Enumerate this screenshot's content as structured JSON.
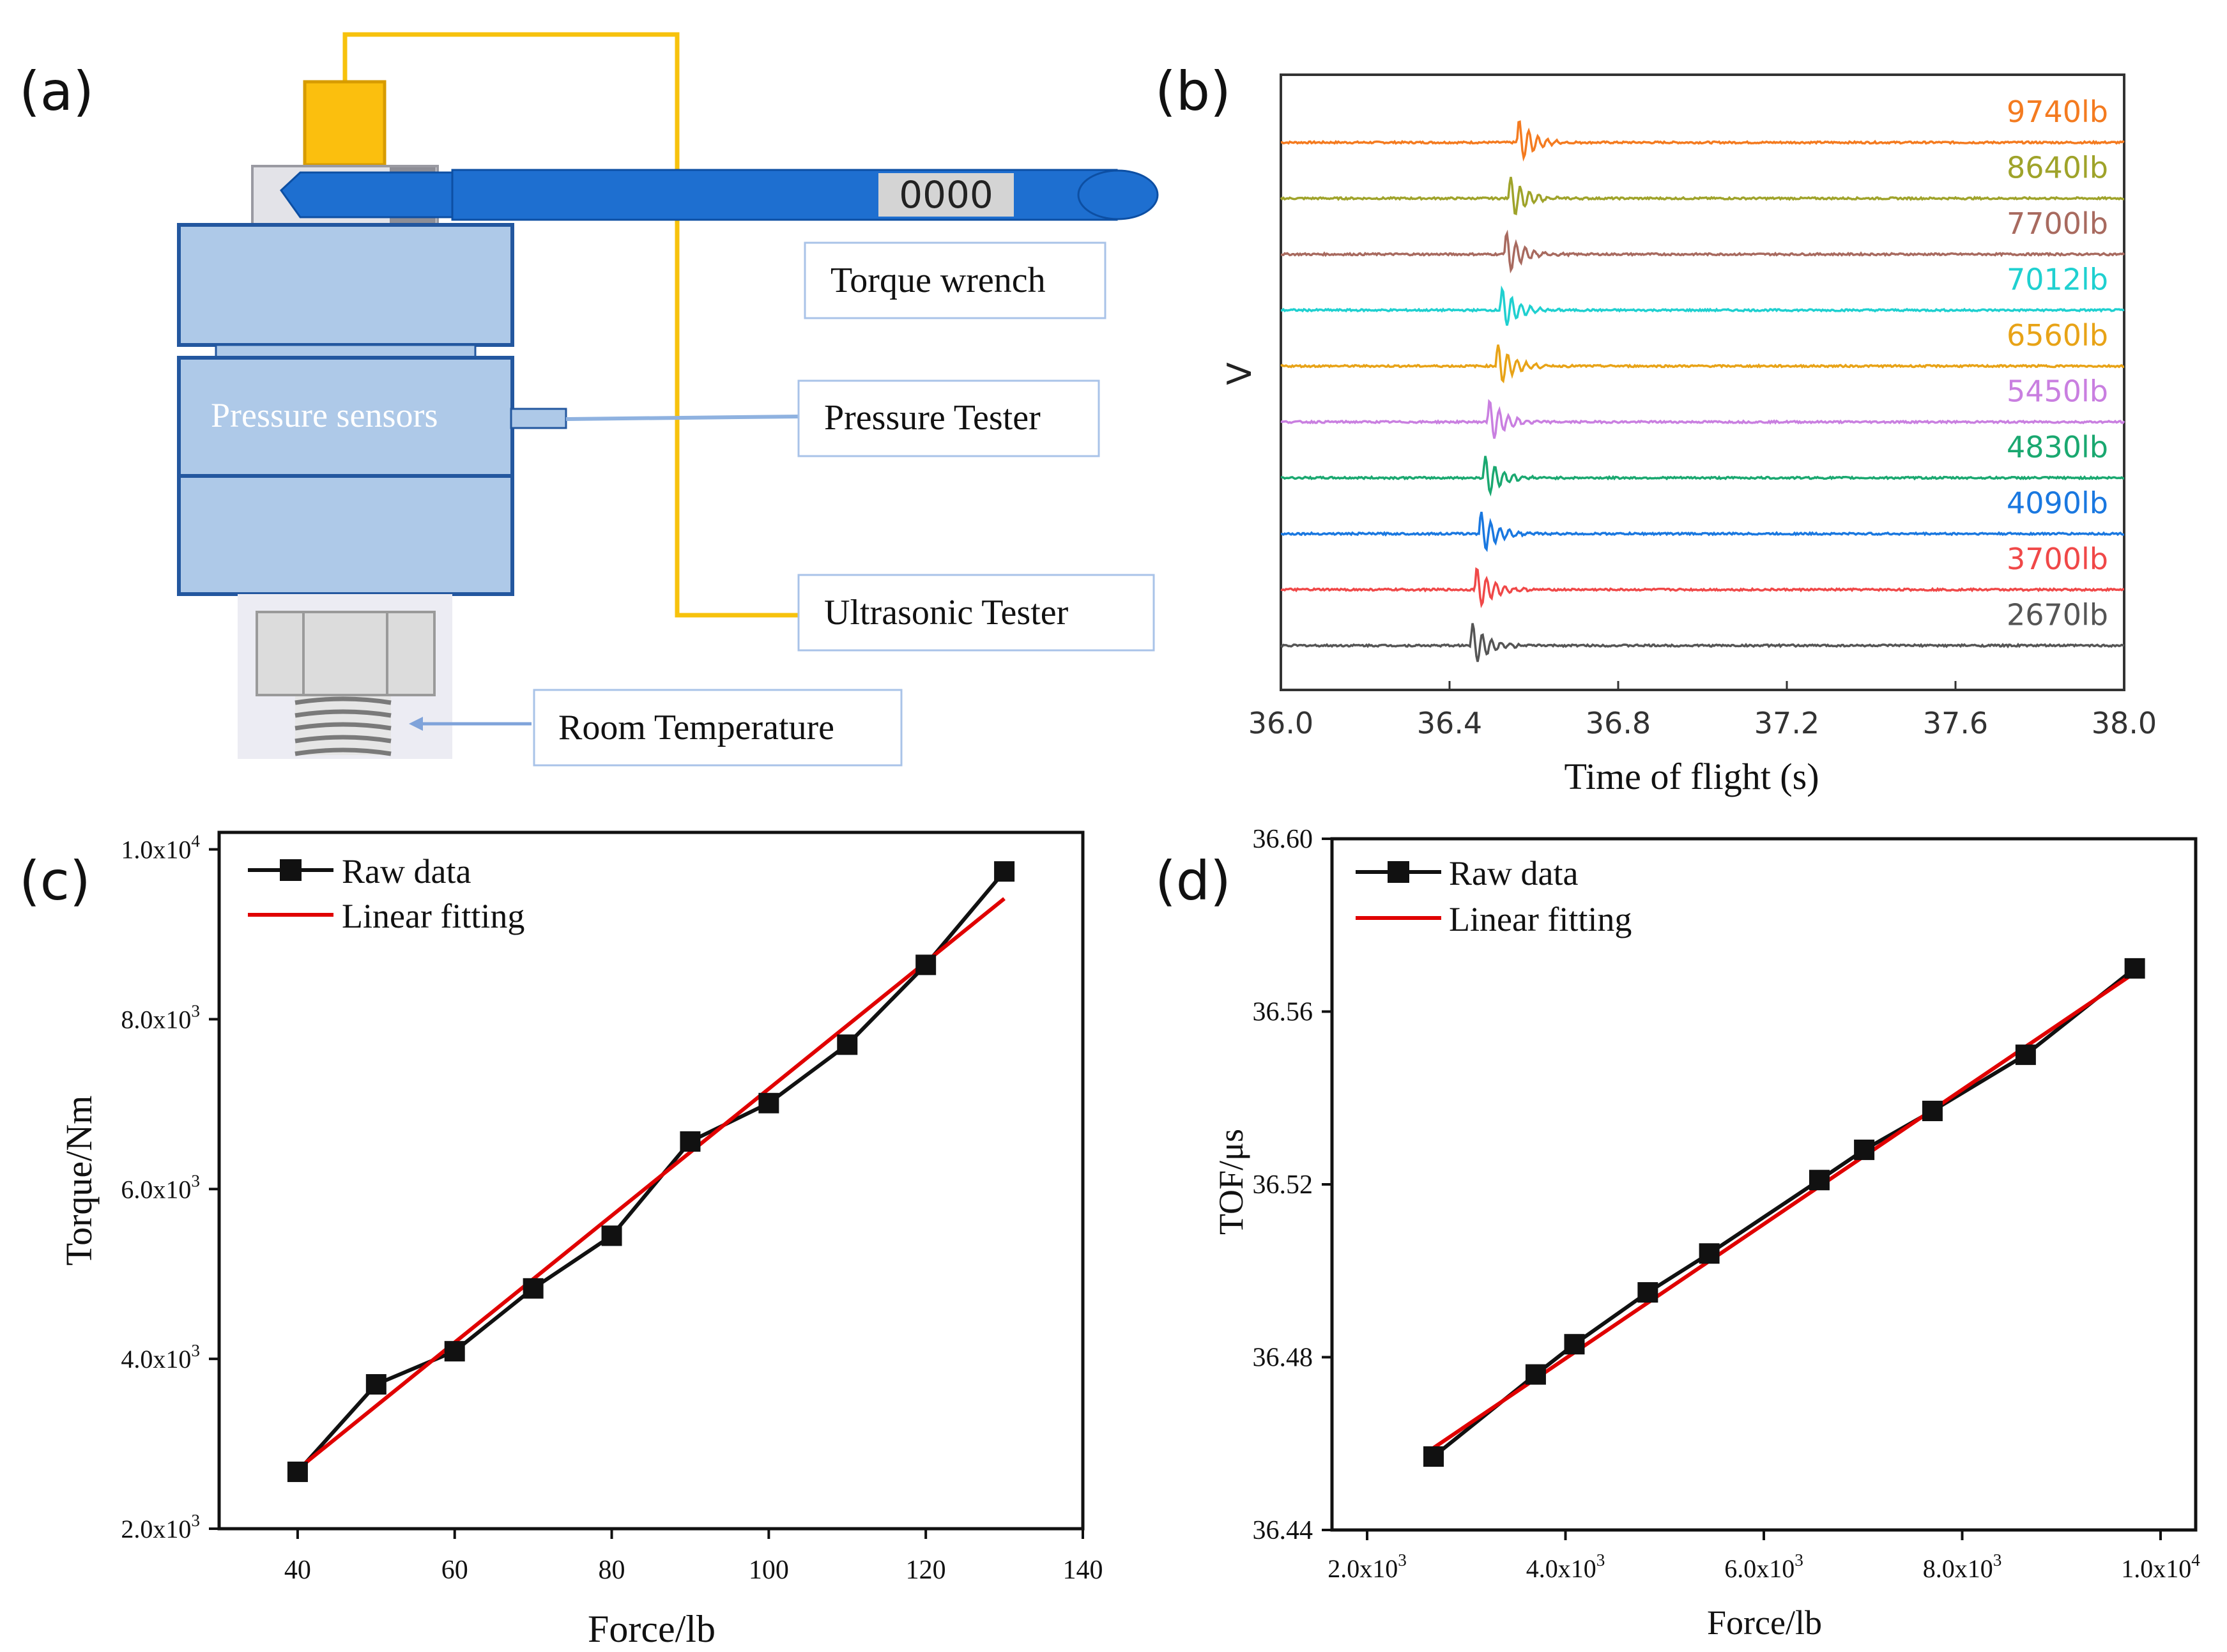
{
  "panel_labels": {
    "a": "(a)",
    "b": "(b)",
    "c": "(c)",
    "d": "(d)"
  },
  "setup": {
    "wrench_display": "0000",
    "sensor_label": "Pressure sensors",
    "callouts": {
      "torque_wrench": "Torque wrench",
      "pressure_tester": "Pressure Tester",
      "ultrasonic_tester": "Ultrasonic Tester",
      "room_temperature": "Room Temperature"
    }
  },
  "colors": {
    "wrench_blue": "#1e6fd0",
    "block_fill": "#aec9e8",
    "block_stroke": "#23579f",
    "cable_yellow": "#f7c20c",
    "fit_red": "#e00000"
  },
  "chart_data": [
    {
      "type": "line",
      "id": "b",
      "title": "",
      "xlabel": "Time of flight  (s)",
      "ylabel": "V",
      "xlim": [
        36.0,
        38.0
      ],
      "x_ticks": [
        "36.0",
        "36.4",
        "36.8",
        "37.2",
        "37.6",
        "38.0"
      ],
      "x_tick_values": [
        36.0,
        36.4,
        36.8,
        37.2,
        37.6,
        38.0
      ],
      "series": [
        {
          "name": "9740lb",
          "arrival": 36.57,
          "color": "#f47b20"
        },
        {
          "name": "8640lb",
          "arrival": 36.55,
          "color": "#9fa32a"
        },
        {
          "name": "7700lb",
          "arrival": 36.54,
          "color": "#a86a5f"
        },
        {
          "name": "7012lb",
          "arrival": 36.53,
          "color": "#1fd0d0"
        },
        {
          "name": "6560lb",
          "arrival": 36.52,
          "color": "#e8a317"
        },
        {
          "name": "5450lb",
          "arrival": 36.5,
          "color": "#c97fe0"
        },
        {
          "name": "4830lb",
          "arrival": 36.49,
          "color": "#1aa870"
        },
        {
          "name": "4090lb",
          "arrival": 36.48,
          "color": "#1a78e0"
        },
        {
          "name": "3700lb",
          "arrival": 36.47,
          "color": "#f04848"
        },
        {
          "name": "2670lb",
          "arrival": 36.46,
          "color": "#555555"
        }
      ]
    },
    {
      "type": "line",
      "id": "c",
      "title": "",
      "xlabel": "Force/lb",
      "ylabel": "Torque/Nm",
      "xlim": [
        30,
        140
      ],
      "ylim": [
        2000,
        10200
      ],
      "x_ticks": [
        "40",
        "60",
        "80",
        "100",
        "120",
        "140"
      ],
      "x_tick_values": [
        40,
        60,
        80,
        100,
        120,
        140
      ],
      "y_ticks": [
        {
          "value": 2000,
          "mant": "2.0x10",
          "exp": "3"
        },
        {
          "value": 4000,
          "mant": "4.0x10",
          "exp": "3"
        },
        {
          "value": 6000,
          "mant": "6.0x10",
          "exp": "3"
        },
        {
          "value": 8000,
          "mant": "8.0x10",
          "exp": "3"
        },
        {
          "value": 10000,
          "mant": "1.0x10",
          "exp": "4"
        }
      ],
      "legend": {
        "raw": "Raw data",
        "fit": "Linear fitting",
        "position": "top-left"
      },
      "series": [
        {
          "name": "Raw data",
          "x": [
            40,
            50,
            60,
            70,
            80,
            90,
            100,
            110,
            120,
            130
          ],
          "y": [
            2670,
            3700,
            4090,
            4830,
            5450,
            6560,
            7012,
            7700,
            8640,
            9740
          ]
        },
        {
          "name": "Linear fitting",
          "x": [
            40,
            130
          ],
          "y": [
            2700,
            9420
          ]
        }
      ]
    },
    {
      "type": "line",
      "id": "d",
      "title": "",
      "xlabel": "Force/lb",
      "ylabel": "TOF/μs",
      "xlim": [
        2000,
        10000
      ],
      "ylim": [
        36.44,
        36.6
      ],
      "x_ticks": [
        {
          "value": 2000,
          "mant": "2.0x10",
          "exp": "3"
        },
        {
          "value": 4000,
          "mant": "4.0x10",
          "exp": "3"
        },
        {
          "value": 6000,
          "mant": "6.0x10",
          "exp": "3"
        },
        {
          "value": 8000,
          "mant": "8.0x10",
          "exp": "3"
        },
        {
          "value": 10000,
          "mant": "1.0x10",
          "exp": "4"
        }
      ],
      "y_ticks": [
        "36.44",
        "36.48",
        "36.52",
        "36.56",
        "36.60"
      ],
      "y_tick_values": [
        36.44,
        36.48,
        36.52,
        36.56,
        36.6
      ],
      "legend": {
        "raw": "Raw data",
        "fit": "Linear fitting",
        "position": "top-left"
      },
      "series": [
        {
          "name": "Raw data",
          "x": [
            2670,
            3700,
            4090,
            4830,
            5450,
            6560,
            7012,
            7700,
            8640,
            9740
          ],
          "y": [
            36.457,
            36.476,
            36.483,
            36.495,
            36.504,
            36.521,
            36.528,
            36.537,
            36.55,
            36.57
          ]
        },
        {
          "name": "Linear fitting",
          "x": [
            2670,
            9740
          ],
          "y": [
            36.459,
            36.569
          ]
        }
      ]
    }
  ]
}
